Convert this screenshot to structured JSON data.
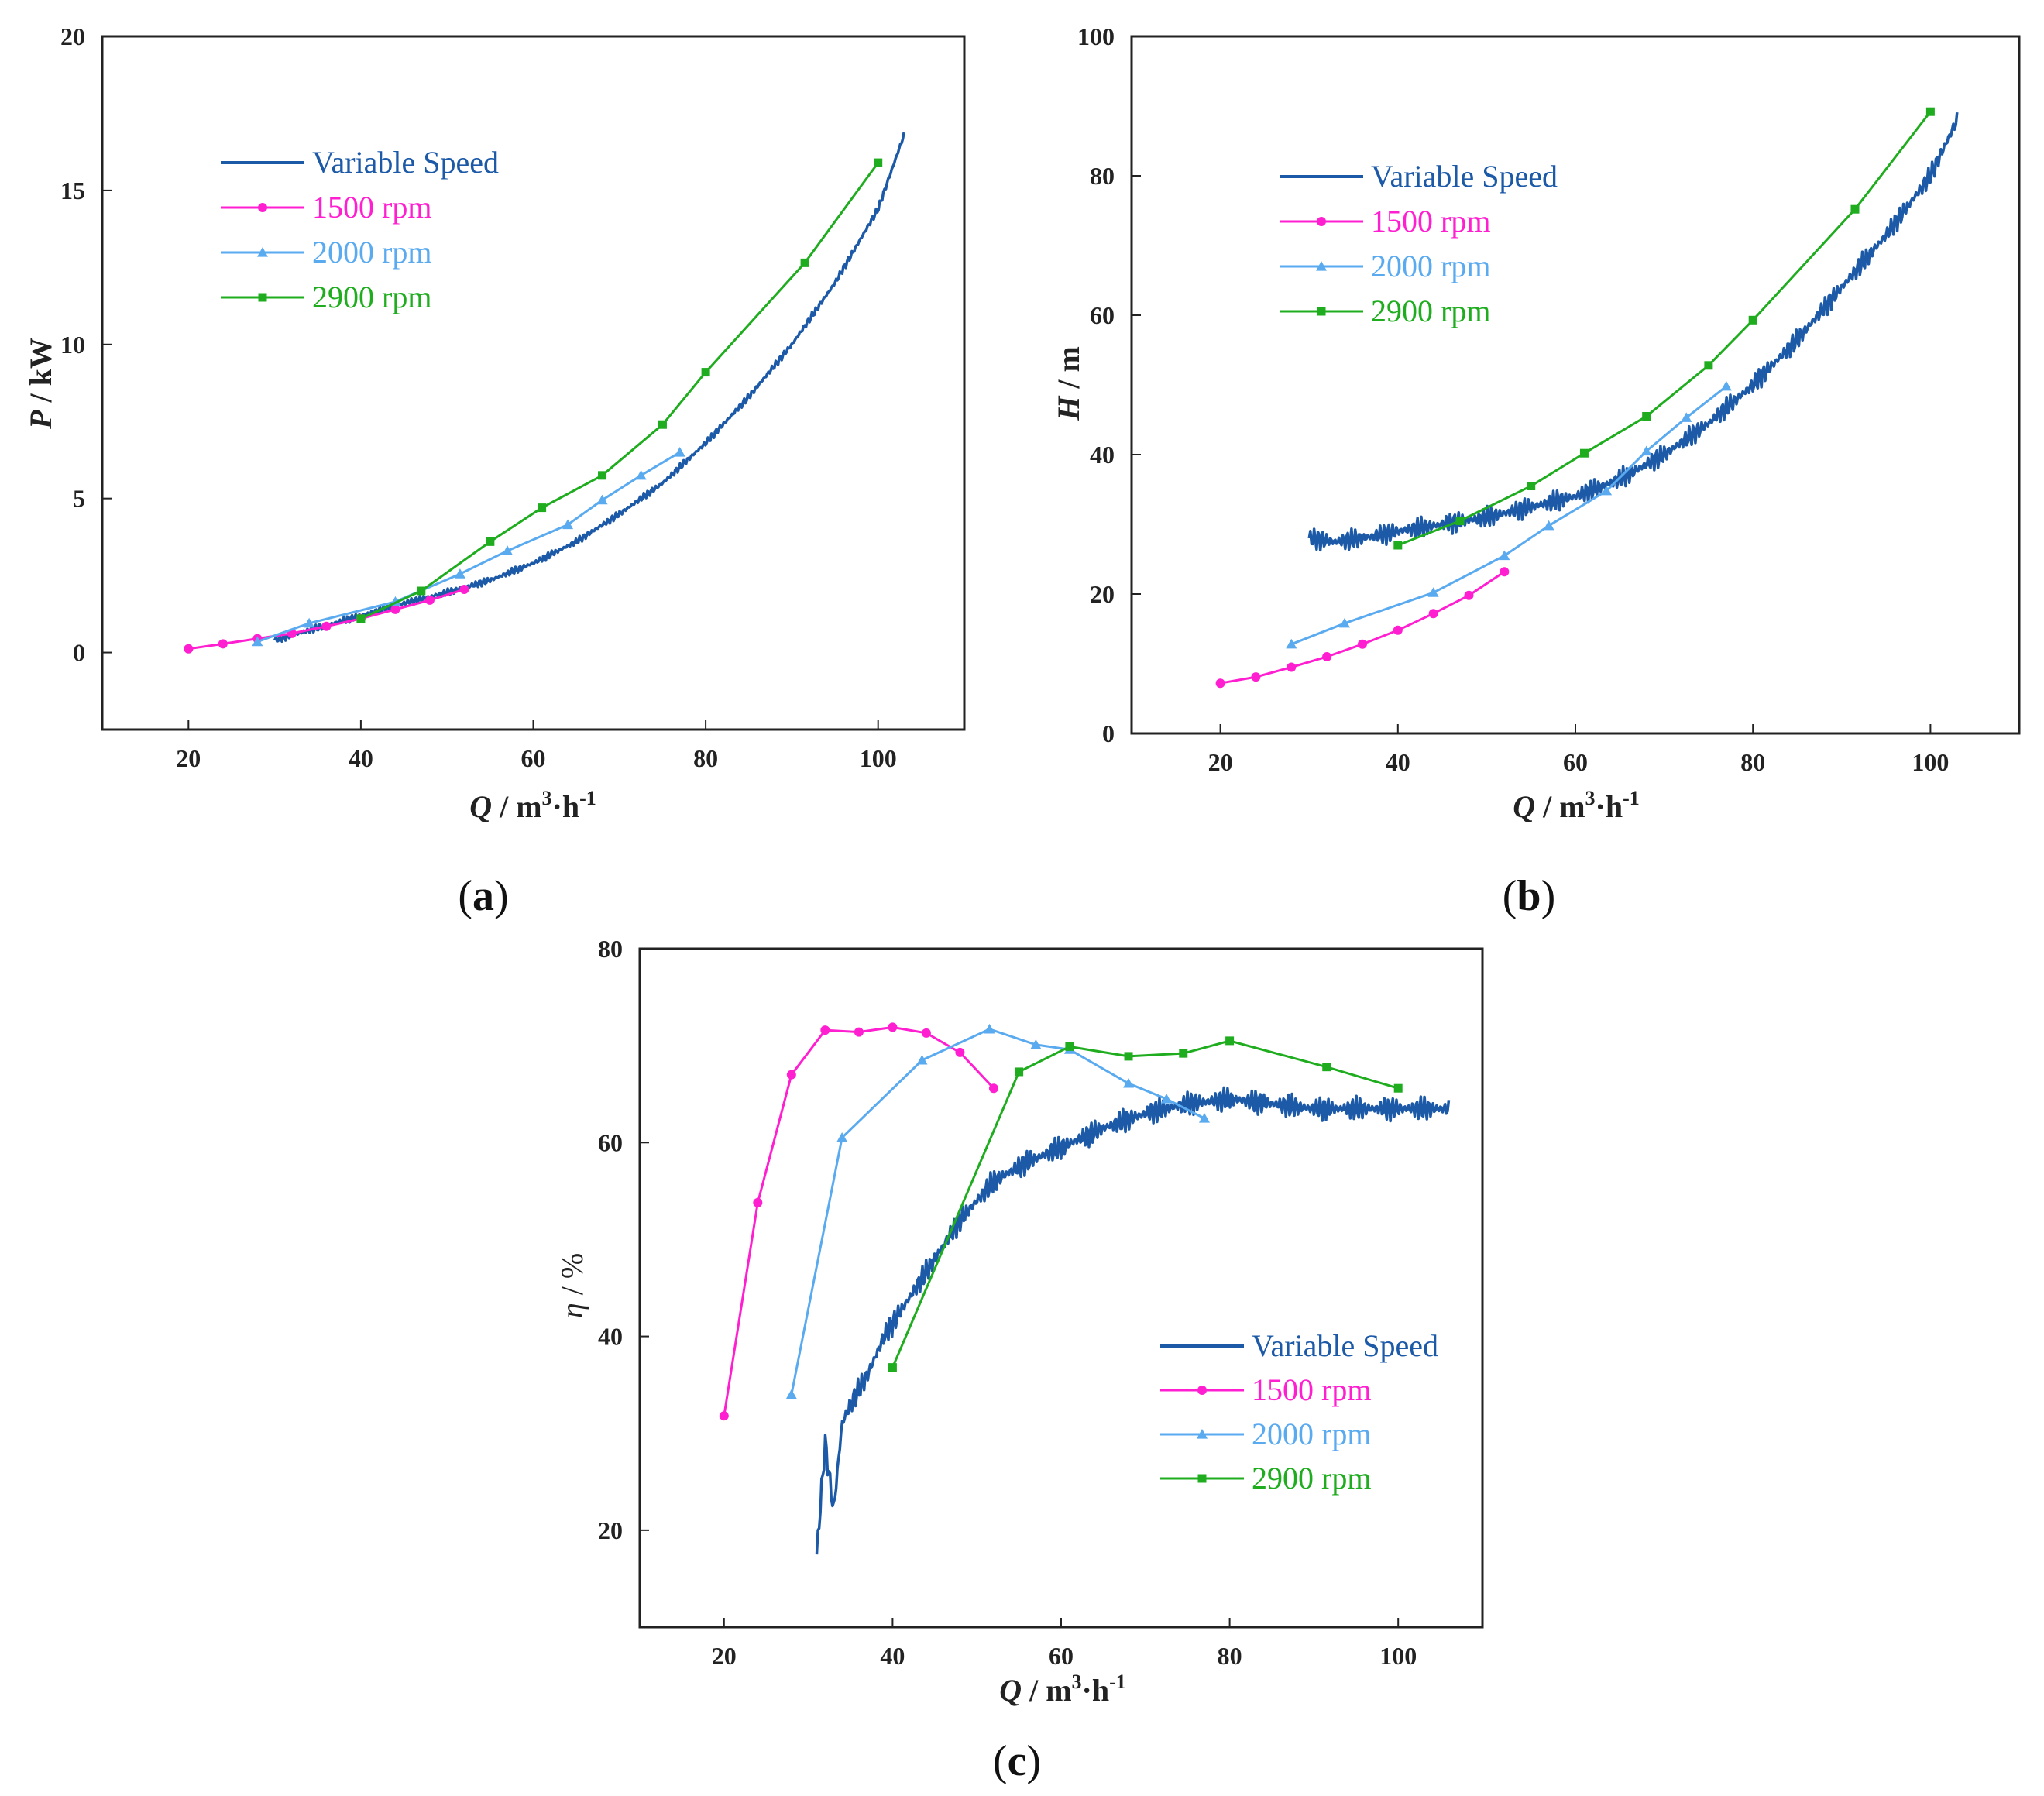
{
  "colors": {
    "variable": "#1c5aa8",
    "r1500": "#ff1fd0",
    "r2000": "#5aaaf0",
    "r2900": "#1fad1f"
  },
  "chart_data": [
    {
      "id": "a",
      "panel_label": "a",
      "type": "line",
      "xlabel": {
        "var": "Q",
        "unit": " / m",
        "sup": "3",
        "rest": "·h",
        "sup2": "-1"
      },
      "ylabel": {
        "var": "P",
        "unit": " / kW"
      },
      "xlim": [
        10,
        110
      ],
      "ylim": [
        -2.5,
        20
      ],
      "xticks": [
        20,
        40,
        60,
        80,
        100
      ],
      "yticks": [
        0,
        5,
        10,
        15,
        20
      ],
      "legend_position": "upper-left",
      "series": [
        {
          "name": "Variable Speed",
          "key": "variable",
          "marker": "none",
          "noise": 0.12,
          "x": [
            30,
            35,
            40,
            45,
            50,
            55,
            60,
            65,
            70,
            75,
            80,
            85,
            90,
            95,
            100,
            103
          ],
          "y": [
            0.4,
            0.8,
            1.2,
            1.6,
            1.95,
            2.35,
            2.9,
            3.6,
            4.5,
            5.5,
            6.8,
            8.3,
            10.0,
            12.0,
            14.4,
            16.8
          ]
        },
        {
          "name": "1500 rpm",
          "key": "r1500",
          "marker": "dot",
          "x": [
            20,
            24,
            28,
            32,
            36,
            40,
            44,
            48,
            52
          ],
          "y": [
            0.12,
            0.28,
            0.45,
            0.62,
            0.85,
            1.1,
            1.4,
            1.7,
            2.05
          ]
        },
        {
          "name": "2000 rpm",
          "key": "r2000",
          "marker": "triangle",
          "x": [
            28,
            34,
            44,
            51.5,
            57,
            64,
            68,
            72.5,
            77
          ],
          "y": [
            0.35,
            0.95,
            1.65,
            2.55,
            3.3,
            4.15,
            4.95,
            5.75,
            6.5
          ]
        },
        {
          "name": "2900 rpm",
          "key": "r2900",
          "marker": "square",
          "x": [
            40,
            47,
            55,
            61,
            68,
            75,
            80,
            91.5,
            100
          ],
          "y": [
            1.1,
            2.0,
            3.6,
            4.7,
            5.75,
            7.4,
            9.1,
            12.65,
            15.9
          ]
        }
      ]
    },
    {
      "id": "b",
      "panel_label": "b",
      "type": "line",
      "xlabel": {
        "var": "Q",
        "unit": " / m",
        "sup": "3",
        "rest": "·h",
        "sup2": "-1"
      },
      "ylabel": {
        "var": "H",
        "unit": " / m"
      },
      "xlim": [
        10,
        110
      ],
      "ylim": [
        0,
        100
      ],
      "xticks": [
        20,
        40,
        60,
        80,
        100
      ],
      "yticks": [
        0,
        20,
        40,
        60,
        80,
        100
      ],
      "legend_position": "upper-left",
      "series": [
        {
          "name": "Variable Speed",
          "key": "variable",
          "marker": "none",
          "noise": 1.6,
          "x": [
            30,
            33,
            36,
            40,
            45,
            50,
            55,
            60,
            65,
            70,
            75,
            80,
            85,
            90,
            95,
            100,
            103
          ],
          "y": [
            28,
            27.5,
            28,
            29,
            30,
            31,
            32.5,
            34,
            36.5,
            40,
            44.5,
            50,
            56.5,
            64,
            71.5,
            80,
            88
          ]
        },
        {
          "name": "1500 rpm",
          "key": "r1500",
          "marker": "dot",
          "x": [
            20,
            24,
            28,
            32,
            36,
            40,
            44,
            48,
            52
          ],
          "y": [
            7.2,
            8.1,
            9.5,
            11,
            12.8,
            14.8,
            17.2,
            19.8,
            23.2
          ]
        },
        {
          "name": "2000 rpm",
          "key": "r2000",
          "marker": "triangle",
          "x": [
            28,
            34,
            44,
            52,
            57,
            63.5,
            68,
            72.5,
            77
          ],
          "y": [
            12.8,
            15.8,
            20.2,
            25.5,
            29.8,
            34.8,
            40.5,
            45.3,
            49.8
          ]
        },
        {
          "name": "2900 rpm",
          "key": "r2900",
          "marker": "square",
          "x": [
            40,
            47,
            55,
            61,
            68,
            75,
            80,
            91.5,
            100
          ],
          "y": [
            27,
            30.5,
            35.5,
            40.2,
            45.5,
            52.8,
            59.3,
            75.2,
            89.2
          ]
        }
      ]
    },
    {
      "id": "c",
      "panel_label": "c",
      "type": "line",
      "xlabel": {
        "var": "Q",
        "unit": " / m",
        "sup": "3",
        "rest": "·h",
        "sup2": "-1"
      },
      "ylabel": {
        "var": "η",
        "unit": " / %"
      },
      "xlim": [
        10,
        110
      ],
      "ylim": [
        10,
        80
      ],
      "xticks": [
        20,
        40,
        60,
        80,
        100
      ],
      "yticks": [
        20,
        40,
        60,
        80
      ],
      "legend_position": "lower-right",
      "series": [
        {
          "name": "Variable Speed",
          "key": "variable",
          "marker": "none",
          "noise": 1.3,
          "x": [
            31,
            32,
            33,
            34,
            35,
            37,
            39,
            42,
            45,
            48,
            52,
            56,
            60,
            65,
            70,
            75,
            80,
            85,
            90,
            95,
            100,
            106
          ],
          "y": [
            17.5,
            29,
            22,
            31,
            33,
            36,
            40,
            44,
            48,
            52,
            56,
            58,
            59.5,
            61.5,
            63,
            64,
            64.5,
            64,
            63.5,
            63.5,
            63.5,
            63.5
          ]
        },
        {
          "name": "1500 rpm",
          "key": "r1500",
          "marker": "dot",
          "x": [
            20,
            24,
            28,
            32,
            36,
            40,
            44,
            48,
            52
          ],
          "y": [
            31.8,
            53.8,
            67,
            71.6,
            71.4,
            71.9,
            71.3,
            69.3,
            65.6
          ]
        },
        {
          "name": "2000 rpm",
          "key": "r2000",
          "marker": "triangle",
          "x": [
            28,
            34,
            43.5,
            51.5,
            57,
            61,
            68,
            72.5,
            77
          ],
          "y": [
            34,
            60.5,
            68.5,
            71.7,
            70.1,
            69.6,
            66.1,
            64.5,
            62.5
          ]
        },
        {
          "name": "2900 rpm",
          "key": "r2900",
          "marker": "square",
          "x": [
            40,
            55,
            61,
            68,
            74.5,
            80,
            91.5,
            100
          ],
          "y": [
            36.8,
            67.3,
            69.9,
            68.9,
            69.2,
            70.5,
            67.8,
            65.6
          ]
        }
      ]
    }
  ]
}
